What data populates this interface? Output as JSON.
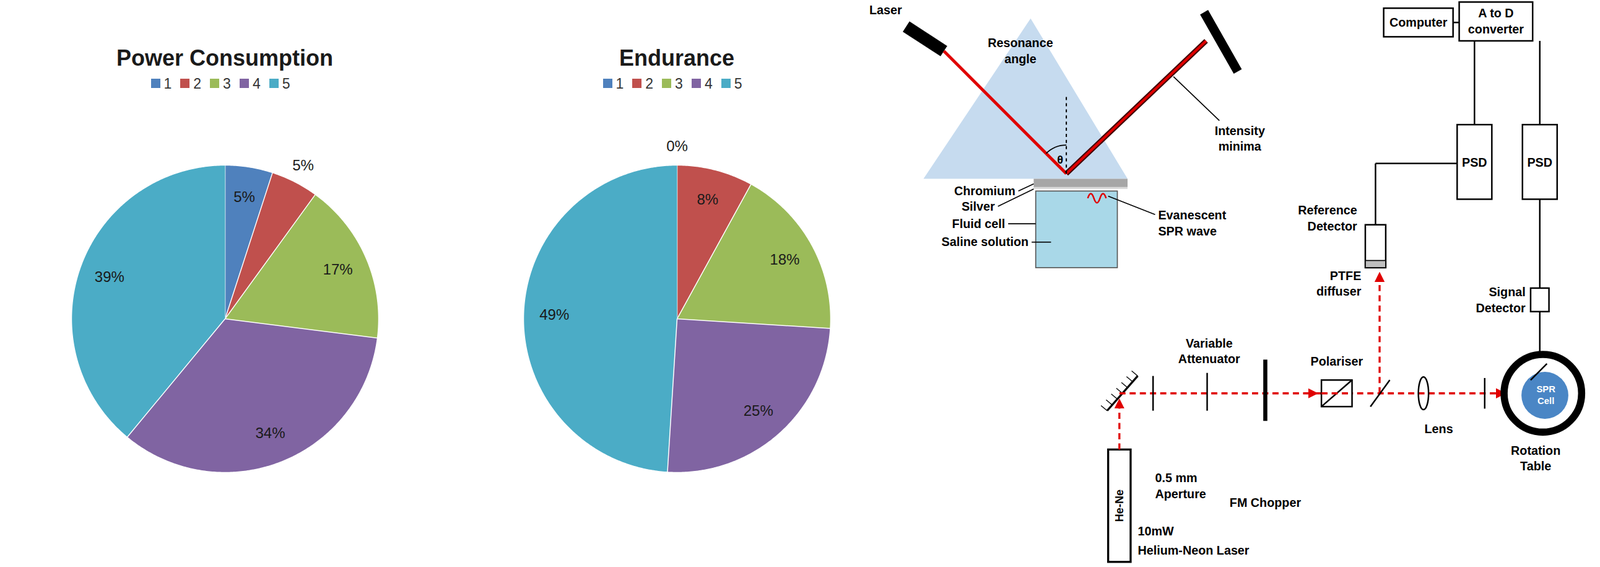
{
  "chart_data": [
    {
      "type": "pie",
      "title": "Power Consumption",
      "categories": [
        "1",
        "2",
        "3",
        "4",
        "5"
      ],
      "values": [
        5,
        5,
        17,
        34,
        39
      ],
      "value_labels": [
        "5%",
        "5%",
        "17%",
        "34%",
        "39%"
      ],
      "colors": [
        "#4F81BD",
        "#C0504D",
        "#9BBB59",
        "#8064A2",
        "#4BACC6"
      ],
      "data_labels": true,
      "legend": "top"
    },
    {
      "type": "pie",
      "title": "Endurance",
      "categories": [
        "1",
        "2",
        "3",
        "4",
        "5"
      ],
      "values": [
        0,
        8,
        18,
        25,
        49
      ],
      "value_labels": [
        "0%",
        "8%",
        "18%",
        "25%",
        "49%"
      ],
      "colors": [
        "#4F81BD",
        "#C0504D",
        "#9BBB59",
        "#8064A2",
        "#4BACC6"
      ],
      "data_labels": true,
      "legend": "top"
    }
  ],
  "spr_diagram": {
    "laser": "Laser",
    "resonance_angle": [
      "Resonance",
      "angle"
    ],
    "theta": "θ",
    "intensity_minima": [
      "Intensity",
      "minima"
    ],
    "chromium": "Chromium",
    "silver": "Silver",
    "fluid_cell": "Fluid cell",
    "saline_solution": "Saline solution",
    "evanescent_wave": [
      "Evanescent",
      "SPR wave"
    ]
  },
  "optical_setup": {
    "computer": "Computer",
    "converter": [
      "A to D",
      "converter"
    ],
    "psd": [
      "PSD",
      "PSD"
    ],
    "reference_detector": [
      "Reference",
      "Detector"
    ],
    "ptfe_diffuser": [
      "PTFE",
      "diffuser"
    ],
    "signal_detector": [
      "Signal",
      "Detector"
    ],
    "variable_attenuator": [
      "Variable",
      "Attenuator"
    ],
    "polariser": "Polariser",
    "lens": "Lens",
    "aperture": [
      "0.5 mm",
      "Aperture"
    ],
    "fm_chopper": "FM Chopper",
    "laser_tube": "He-Ne",
    "laser_power": "10mW",
    "laser_name": "Helium-Neon Laser",
    "rotation_table": [
      "Rotation",
      "Table"
    ],
    "spr_cell": [
      "SPR",
      "Cell"
    ]
  }
}
